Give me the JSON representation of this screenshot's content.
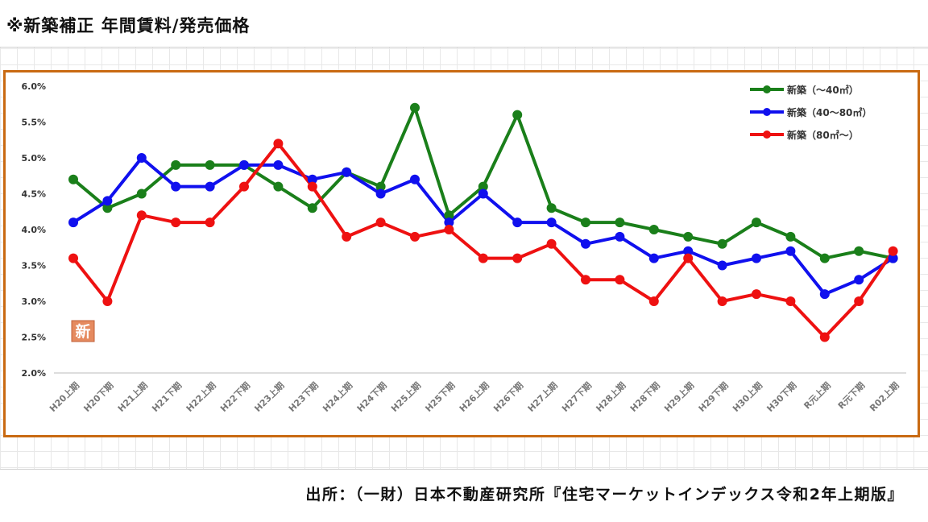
{
  "page": {
    "title": "※新築補正 年間賃料/発売価格",
    "source": "出所：（一財）日本不動産研究所『住宅マーケットインデックス令和2年上期版』",
    "stamp": "新"
  },
  "chart_data": {
    "type": "line",
    "title": "",
    "xlabel": "",
    "ylabel": "",
    "ylim": [
      2.0,
      6.0
    ],
    "yticks": [
      "2.0%",
      "2.5%",
      "3.0%",
      "3.5%",
      "4.0%",
      "4.5%",
      "5.0%",
      "5.5%",
      "6.0%"
    ],
    "categories": [
      "H20上期",
      "H20下期",
      "H21上期",
      "H21下期",
      "H22上期",
      "H22下期",
      "H23上期",
      "H23下期",
      "H24上期",
      "H24下期",
      "H25上期",
      "H25下期",
      "H26上期",
      "H26下期",
      "H27上期",
      "H27下期",
      "H28上期",
      "H28下期",
      "H29上期",
      "H29下期",
      "H30上期",
      "H30下期",
      "R元上期",
      "R元下期",
      "R02上期"
    ],
    "grid": "horizontal-off",
    "legend_position": "top-right",
    "series": [
      {
        "name": "新築（～40㎡）",
        "color": "#1a7f1a",
        "values": [
          4.7,
          4.3,
          4.5,
          4.9,
          4.9,
          4.9,
          4.6,
          4.3,
          4.8,
          4.6,
          5.7,
          4.2,
          4.6,
          5.6,
          4.3,
          4.1,
          4.1,
          4.0,
          3.9,
          3.8,
          4.1,
          3.9,
          3.6,
          3.7,
          3.6
        ]
      },
      {
        "name": "新築（40～80㎡）",
        "color": "#1010ee",
        "values": [
          4.1,
          4.4,
          5.0,
          4.6,
          4.6,
          4.9,
          4.9,
          4.7,
          4.8,
          4.5,
          4.7,
          4.1,
          4.5,
          4.1,
          4.1,
          3.8,
          3.9,
          3.6,
          3.7,
          3.5,
          3.6,
          3.7,
          3.1,
          3.3,
          3.6
        ]
      },
      {
        "name": "新築（80㎡～）",
        "color": "#ee1111",
        "values": [
          3.6,
          3.0,
          4.2,
          4.1,
          4.1,
          4.6,
          5.2,
          4.6,
          3.9,
          4.1,
          3.9,
          4.0,
          3.6,
          3.6,
          3.8,
          3.3,
          3.3,
          3.0,
          3.6,
          3.0,
          3.1,
          3.0,
          2.5,
          3.0,
          3.7
        ]
      }
    ]
  }
}
